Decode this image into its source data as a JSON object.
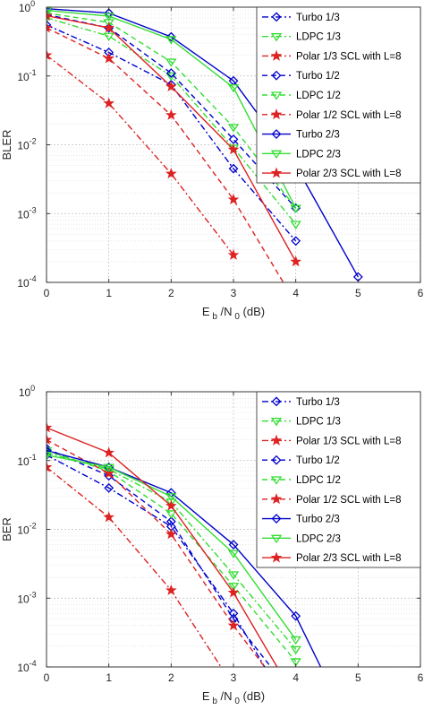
{
  "chart_data": [
    {
      "type": "line",
      "ylabel": "BLER",
      "xlabel_main": "E",
      "xlabel_sub1": "b",
      "xlabel_mid": "/N",
      "xlabel_sub2": "0",
      "xlabel_tail": "(dB)",
      "xlim": [
        0,
        6
      ],
      "ylim": [
        0.0001,
        1
      ],
      "yscale": "log",
      "grid": true,
      "legend_position": "top-right",
      "x_ticks": [
        "0",
        "1",
        "2",
        "3",
        "4",
        "5",
        "6"
      ],
      "y_ticks": [
        {
          "base": "10",
          "exp": "0",
          "value": 1
        },
        {
          "base": "10",
          "exp": "-1",
          "value": 0.1
        },
        {
          "base": "10",
          "exp": "-2",
          "value": 0.01
        },
        {
          "base": "10",
          "exp": "-3",
          "value": 0.001
        },
        {
          "base": "10",
          "exp": "-4",
          "value": 0.0001
        }
      ],
      "series": [
        {
          "name": "Turbo 1/3",
          "color": "#0000cc",
          "dash": "dashdot",
          "marker": "diamond",
          "x": [
            0,
            1,
            2,
            3,
            4
          ],
          "y": [
            0.55,
            0.22,
            0.075,
            0.0045,
            0.0004
          ]
        },
        {
          "name": "LDPC 1/3",
          "color": "#33dd33",
          "dash": "dashdot",
          "marker": "triangle",
          "x": [
            0,
            1,
            2,
            3,
            4
          ],
          "y": [
            0.7,
            0.38,
            0.1,
            0.009,
            0.0007
          ]
        },
        {
          "name": "Polar 1/3 SCL with L=8",
          "color": "#dd2222",
          "dash": "dashdot",
          "marker": "star",
          "x": [
            0,
            1,
            2,
            3
          ],
          "y": [
            0.2,
            0.04,
            0.0038,
            0.00025
          ]
        },
        {
          "name": "Turbo 1/2",
          "color": "#0000cc",
          "dash": "dashed",
          "marker": "diamond",
          "x": [
            0,
            1,
            2,
            3,
            4
          ],
          "y": [
            0.78,
            0.5,
            0.11,
            0.012,
            0.0012
          ]
        },
        {
          "name": "LDPC 1/2",
          "color": "#33dd33",
          "dash": "dashed",
          "marker": "triangle",
          "x": [
            0,
            1,
            2,
            3,
            4
          ],
          "y": [
            0.82,
            0.6,
            0.16,
            0.018,
            0.0012
          ]
        },
        {
          "name": "Polar 1/2 SCL with L=8",
          "color": "#dd2222",
          "dash": "dashed",
          "marker": "star",
          "x": [
            0,
            1,
            2,
            3,
            3.8
          ],
          "y": [
            0.5,
            0.18,
            0.027,
            0.0016,
            0.0001
          ]
        },
        {
          "name": "Turbo 2/3",
          "color": "#0000cc",
          "dash": "solid",
          "marker": "diamond",
          "x": [
            0,
            1,
            2,
            3,
            4,
            5
          ],
          "y": [
            0.95,
            0.82,
            0.37,
            0.085,
            0.005,
            0.00012
          ]
        },
        {
          "name": "LDPC 2/3",
          "color": "#33dd33",
          "dash": "solid",
          "marker": "triangle",
          "x": [
            0,
            1,
            2,
            3,
            4
          ],
          "y": [
            0.9,
            0.74,
            0.34,
            0.068,
            0.0012
          ]
        },
        {
          "name": "Polar 2/3 SCL with L=8",
          "color": "#dd2222",
          "dash": "solid",
          "marker": "star",
          "x": [
            0,
            1,
            2,
            3,
            4
          ],
          "y": [
            0.75,
            0.5,
            0.07,
            0.0085,
            0.0002
          ]
        }
      ]
    },
    {
      "type": "line",
      "ylabel": "BER",
      "xlabel_main": "E",
      "xlabel_sub1": "b",
      "xlabel_mid": "/N",
      "xlabel_sub2": "0",
      "xlabel_tail": "(dB)",
      "xlim": [
        0,
        6
      ],
      "ylim": [
        0.0001,
        1
      ],
      "yscale": "log",
      "grid": true,
      "legend_position": "top-right",
      "x_ticks": [
        "0",
        "1",
        "2",
        "3",
        "4",
        "5",
        "6"
      ],
      "y_ticks": [
        {
          "base": "10",
          "exp": "0",
          "value": 1
        },
        {
          "base": "10",
          "exp": "-1",
          "value": 0.1
        },
        {
          "base": "10",
          "exp": "-2",
          "value": 0.01
        },
        {
          "base": "10",
          "exp": "-3",
          "value": 0.001
        },
        {
          "base": "10",
          "exp": "-4",
          "value": 0.0001
        }
      ],
      "series": [
        {
          "name": "Turbo 1/3",
          "color": "#0000cc",
          "dash": "dashdot",
          "marker": "diamond",
          "x": [
            0,
            1,
            2,
            3,
            3.5
          ],
          "y": [
            0.12,
            0.04,
            0.011,
            0.0006,
            0.0001
          ]
        },
        {
          "name": "LDPC 1/3",
          "color": "#33dd33",
          "dash": "dashdot",
          "marker": "triangle",
          "x": [
            0,
            1,
            2,
            3,
            4
          ],
          "y": [
            0.13,
            0.075,
            0.025,
            0.0022,
            0.00018
          ]
        },
        {
          "name": "Polar 1/3 SCL with L=8",
          "color": "#dd2222",
          "dash": "dashdot",
          "marker": "star",
          "x": [
            0,
            1,
            2,
            2.8
          ],
          "y": [
            0.08,
            0.015,
            0.0013,
            0.0001
          ]
        },
        {
          "name": "Turbo 1/2",
          "color": "#0000cc",
          "dash": "dashed",
          "marker": "diamond",
          "x": [
            0,
            1,
            2,
            3,
            3.6
          ],
          "y": [
            0.15,
            0.06,
            0.013,
            0.0005,
            0.0001
          ]
        },
        {
          "name": "LDPC 1/2",
          "color": "#33dd33",
          "dash": "dashed",
          "marker": "triangle",
          "x": [
            0,
            1,
            2,
            3,
            4
          ],
          "y": [
            0.14,
            0.07,
            0.017,
            0.0015,
            0.00012
          ]
        },
        {
          "name": "Polar 1/2 SCL with L=8",
          "color": "#dd2222",
          "dash": "dashed",
          "marker": "star",
          "x": [
            0,
            1,
            2,
            3,
            3.5
          ],
          "y": [
            0.2,
            0.065,
            0.0085,
            0.0004,
            0.0001
          ]
        },
        {
          "name": "Turbo 2/3",
          "color": "#0000cc",
          "dash": "solid",
          "marker": "diamond",
          "x": [
            0,
            1,
            2,
            3,
            4,
            4.4
          ],
          "y": [
            0.14,
            0.08,
            0.034,
            0.006,
            0.00055,
            0.0001
          ]
        },
        {
          "name": "LDPC 2/3",
          "color": "#33dd33",
          "dash": "solid",
          "marker": "triangle",
          "x": [
            0,
            1,
            2,
            3,
            4
          ],
          "y": [
            0.12,
            0.08,
            0.03,
            0.0045,
            0.00025
          ]
        },
        {
          "name": "Polar 2/3 SCL with L=8",
          "color": "#dd2222",
          "dash": "solid",
          "marker": "star",
          "x": [
            0,
            1,
            2,
            3,
            3.7
          ],
          "y": [
            0.3,
            0.13,
            0.022,
            0.0012,
            0.0001
          ]
        }
      ]
    }
  ]
}
